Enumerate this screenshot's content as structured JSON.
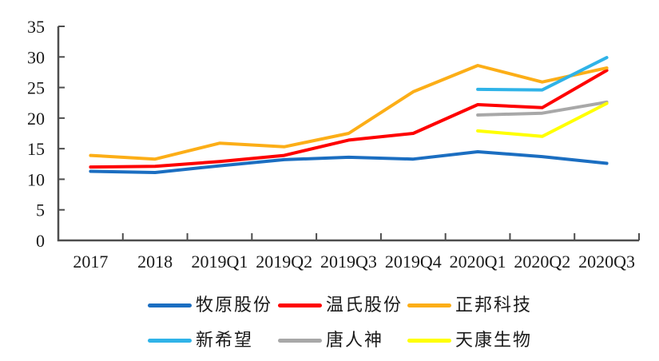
{
  "chart_data": {
    "type": "line",
    "title": "",
    "xlabel": "",
    "ylabel": "",
    "categories": [
      "2017",
      "2018",
      "2019Q1",
      "2019Q2",
      "2019Q3",
      "2019Q4",
      "2020Q1",
      "2020Q2",
      "2020Q3"
    ],
    "series": [
      {
        "name": "牧原股份",
        "color": "#1B6EC1",
        "values": [
          11.3,
          11.1,
          12.2,
          13.2,
          13.6,
          13.3,
          14.5,
          13.7,
          12.6
        ]
      },
      {
        "name": "温氏股份",
        "color": "#FE0000",
        "values": [
          12.0,
          12.1,
          12.9,
          13.9,
          16.4,
          17.5,
          22.2,
          21.7,
          27.8
        ]
      },
      {
        "name": "正邦科技",
        "color": "#FCAE17",
        "values": [
          13.9,
          13.3,
          15.9,
          15.3,
          17.5,
          24.3,
          28.6,
          25.9,
          28.2
        ]
      },
      {
        "name": "新希望",
        "color": "#2FB3E8",
        "values": [
          null,
          null,
          null,
          null,
          null,
          null,
          24.7,
          24.6,
          29.9
        ]
      },
      {
        "name": "唐人神",
        "color": "#A8A8A8",
        "values": [
          null,
          null,
          null,
          null,
          null,
          null,
          20.5,
          20.8,
          22.6
        ]
      },
      {
        "name": "天康生物",
        "color": "#FFFF00",
        "values": [
          null,
          null,
          null,
          null,
          null,
          null,
          17.9,
          17.0,
          22.4
        ]
      }
    ],
    "ylim": [
      0,
      35
    ],
    "yticks": [
      0,
      5,
      10,
      15,
      20,
      25,
      30,
      35
    ],
    "grid": false,
    "legend_position": "bottom",
    "legend_rows": [
      [
        0,
        1,
        2
      ],
      [
        3,
        4,
        5
      ]
    ],
    "axis_color": "#4D4D4D",
    "text_color": "#1A1A1A"
  }
}
